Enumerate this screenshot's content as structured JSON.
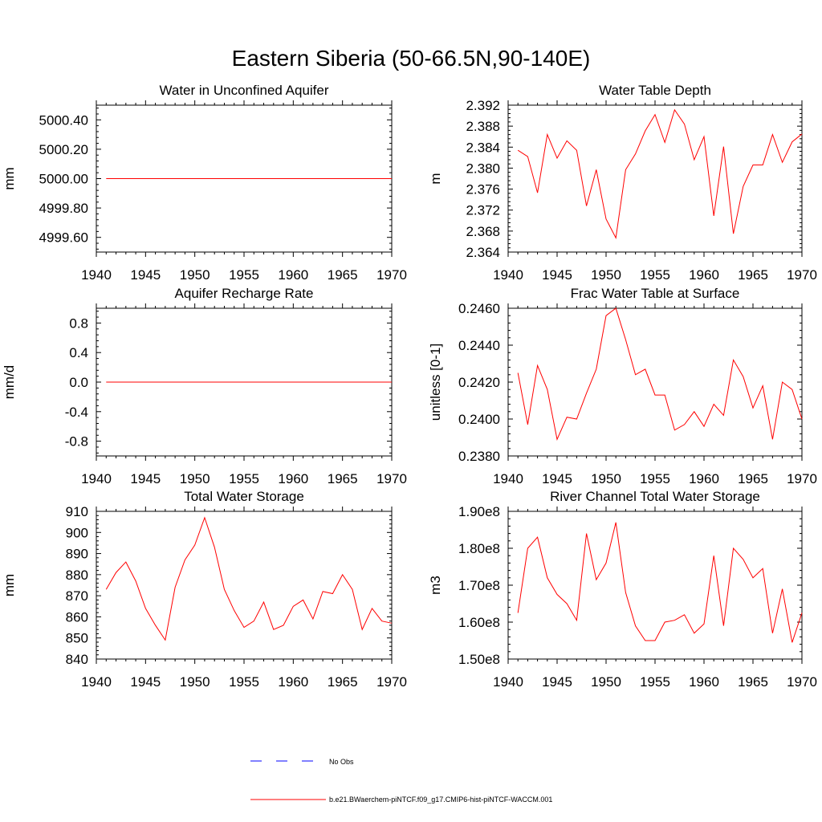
{
  "title": "Eastern Siberia (50-66.5N,90-140E)",
  "colors": {
    "model": "#ff0000",
    "obs": "#0000ff",
    "frame": "#000000"
  },
  "legend": {
    "obs_label": "No Obs",
    "model_label": "b.e21.BWaerchem-piNTCF.f09_g17.CMIP6-hist-piNTCF-WACCM.001"
  },
  "chart_data": [
    {
      "type": "line",
      "title": "Water in Unconfined Aquifer",
      "ylabel": "mm",
      "xlim": [
        1940,
        1970
      ],
      "ylim": [
        4999.5,
        5000.5
      ],
      "xticks": [
        1940,
        1945,
        1950,
        1955,
        1960,
        1965,
        1970
      ],
      "xtick_labels": [
        "1940",
        "1945",
        "1950",
        "1955",
        "1960",
        "1965",
        "1970"
      ],
      "yticks": [
        4999.6,
        4999.8,
        5000.0,
        5000.2,
        5000.4
      ],
      "ytick_labels": [
        "4999.60",
        "4999.80",
        "5000.00",
        "5000.20",
        "5000.40"
      ],
      "x": [
        1941,
        1942,
        1943,
        1944,
        1945,
        1946,
        1947,
        1948,
        1949,
        1950,
        1951,
        1952,
        1953,
        1954,
        1955,
        1956,
        1957,
        1958,
        1959,
        1960,
        1961,
        1962,
        1963,
        1964,
        1965,
        1966,
        1967,
        1968,
        1969,
        1970
      ],
      "series": [
        {
          "values": [
            5000,
            5000,
            5000,
            5000,
            5000,
            5000,
            5000,
            5000,
            5000,
            5000,
            5000,
            5000,
            5000,
            5000,
            5000,
            5000,
            5000,
            5000,
            5000,
            5000,
            5000,
            5000,
            5000,
            5000,
            5000,
            5000,
            5000,
            5000,
            5000,
            5000
          ]
        }
      ]
    },
    {
      "type": "line",
      "title": "Water Table Depth",
      "ylabel": "m",
      "xlim": [
        1940,
        1970
      ],
      "ylim": [
        2.364,
        2.392
      ],
      "xticks": [
        1940,
        1945,
        1950,
        1955,
        1960,
        1965,
        1970
      ],
      "xtick_labels": [
        "1940",
        "1945",
        "1950",
        "1955",
        "1960",
        "1965",
        "1970"
      ],
      "yticks": [
        2.364,
        2.368,
        2.372,
        2.376,
        2.38,
        2.384,
        2.388,
        2.392
      ],
      "ytick_labels": [
        "2.364",
        "2.368",
        "2.372",
        "2.376",
        "2.380",
        "2.384",
        "2.388",
        "2.392"
      ],
      "x": [
        1941,
        1942,
        1943,
        1944,
        1945,
        1946,
        1947,
        1948,
        1949,
        1950,
        1951,
        1952,
        1953,
        1954,
        1955,
        1956,
        1957,
        1958,
        1959,
        1960,
        1961,
        1962,
        1963,
        1964,
        1965,
        1966,
        1967,
        1968,
        1969,
        1970
      ],
      "series": [
        {
          "values": [
            2.3834,
            2.3822,
            2.3753,
            2.3864,
            2.3819,
            2.3852,
            2.3834,
            2.3728,
            2.3797,
            2.3703,
            2.3667,
            2.3797,
            2.3827,
            2.3871,
            2.3902,
            2.3849,
            2.3911,
            2.3884,
            2.3816,
            2.386,
            2.3709,
            2.3841,
            2.3675,
            2.3765,
            2.3806,
            2.3806,
            2.3864,
            2.3811,
            2.385,
            2.3865
          ]
        }
      ]
    },
    {
      "type": "line",
      "title": "Aquifer Recharge Rate",
      "ylabel": "mm/d",
      "xlim": [
        1940,
        1970
      ],
      "ylim": [
        -1.0,
        1.0
      ],
      "xticks": [
        1940,
        1945,
        1950,
        1955,
        1960,
        1965,
        1970
      ],
      "xtick_labels": [
        "1940",
        "1945",
        "1950",
        "1955",
        "1960",
        "1965",
        "1970"
      ],
      "yticks": [
        -0.8,
        -0.4,
        0.0,
        0.4,
        0.8
      ],
      "ytick_labels": [
        "-0.8",
        "-0.4",
        "0.0",
        "0.4",
        "0.8"
      ],
      "x": [
        1941,
        1942,
        1943,
        1944,
        1945,
        1946,
        1947,
        1948,
        1949,
        1950,
        1951,
        1952,
        1953,
        1954,
        1955,
        1956,
        1957,
        1958,
        1959,
        1960,
        1961,
        1962,
        1963,
        1964,
        1965,
        1966,
        1967,
        1968,
        1969,
        1970
      ],
      "series": [
        {
          "values": [
            0,
            0,
            0,
            0,
            0,
            0,
            0,
            0,
            0,
            0,
            0,
            0,
            0,
            0,
            0,
            0,
            0,
            0,
            0,
            0,
            0,
            0,
            0,
            0,
            0,
            0,
            0,
            0,
            0,
            0
          ]
        }
      ]
    },
    {
      "type": "line",
      "title": "Frac Water Table at Surface",
      "ylabel": "unitless [0-1]",
      "xlim": [
        1940,
        1970
      ],
      "ylim": [
        0.238,
        0.246
      ],
      "xticks": [
        1940,
        1945,
        1950,
        1955,
        1960,
        1965,
        1970
      ],
      "xtick_labels": [
        "1940",
        "1945",
        "1950",
        "1955",
        "1960",
        "1965",
        "1970"
      ],
      "yticks": [
        0.238,
        0.24,
        0.242,
        0.244,
        0.246
      ],
      "ytick_labels": [
        "0.2380",
        "0.2400",
        "0.2420",
        "0.2440",
        "0.2460"
      ],
      "x": [
        1941,
        1942,
        1943,
        1944,
        1945,
        1946,
        1947,
        1948,
        1949,
        1950,
        1951,
        1952,
        1953,
        1954,
        1955,
        1956,
        1957,
        1958,
        1959,
        1960,
        1961,
        1962,
        1963,
        1964,
        1965,
        1966,
        1967,
        1968,
        1969,
        1970
      ],
      "series": [
        {
          "values": [
            0.2425,
            0.2397,
            0.2429,
            0.2416,
            0.2389,
            0.2401,
            0.24,
            0.2414,
            0.2427,
            0.2456,
            0.246,
            0.2443,
            0.2424,
            0.2427,
            0.2413,
            0.2413,
            0.2394,
            0.2397,
            0.2404,
            0.2396,
            0.2408,
            0.2402,
            0.2432,
            0.2423,
            0.2406,
            0.2418,
            0.2389,
            0.242,
            0.2416,
            0.24
          ]
        }
      ]
    },
    {
      "type": "line",
      "title": "Total Water Storage",
      "ylabel": "mm",
      "xlim": [
        1940,
        1970
      ],
      "ylim": [
        840,
        910
      ],
      "xticks": [
        1940,
        1945,
        1950,
        1955,
        1960,
        1965,
        1970
      ],
      "xtick_labels": [
        "1940",
        "1945",
        "1950",
        "1955",
        "1960",
        "1965",
        "1970"
      ],
      "yticks": [
        840,
        850,
        860,
        870,
        880,
        890,
        900,
        910
      ],
      "ytick_labels": [
        "840",
        "850",
        "860",
        "870",
        "880",
        "890",
        "900",
        "910"
      ],
      "x": [
        1941,
        1942,
        1943,
        1944,
        1945,
        1946,
        1947,
        1948,
        1949,
        1950,
        1951,
        1952,
        1953,
        1954,
        1955,
        1956,
        1957,
        1958,
        1959,
        1960,
        1961,
        1962,
        1963,
        1964,
        1965,
        1966,
        1967,
        1968,
        1969,
        1970
      ],
      "series": [
        {
          "values": [
            873,
            881,
            886,
            877,
            864,
            856,
            849,
            874,
            887,
            894,
            907,
            893,
            873,
            863,
            855,
            858,
            867,
            854,
            856,
            865,
            868,
            859,
            872,
            871,
            880,
            873,
            854,
            864,
            858,
            857
          ]
        }
      ]
    },
    {
      "type": "line",
      "title": "River Channel Total Water Storage",
      "ylabel": "m3",
      "xlim": [
        1940,
        1970
      ],
      "ylim": [
        150000000,
        190000000
      ],
      "xticks": [
        1940,
        1945,
        1950,
        1955,
        1960,
        1965,
        1970
      ],
      "xtick_labels": [
        "1940",
        "1945",
        "1950",
        "1955",
        "1960",
        "1965",
        "1970"
      ],
      "yticks": [
        150000000,
        160000000,
        170000000,
        180000000,
        190000000
      ],
      "ytick_labels": [
        "1.50e8",
        "1.60e8",
        "1.70e8",
        "1.80e8",
        "1.90e8"
      ],
      "x": [
        1941,
        1942,
        1943,
        1944,
        1945,
        1946,
        1947,
        1948,
        1949,
        1950,
        1951,
        1952,
        1953,
        1954,
        1955,
        1956,
        1957,
        1958,
        1959,
        1960,
        1961,
        1962,
        1963,
        1964,
        1965,
        1966,
        1967,
        1968,
        1969,
        1970
      ],
      "series": [
        {
          "values": [
            162500000,
            180000000,
            183000000,
            172000000,
            167500000,
            165000000,
            160500000,
            184000000,
            171500000,
            176000000,
            187000000,
            168000000,
            159000000,
            155000000,
            155000000,
            160000000,
            160500000,
            162000000,
            157000000,
            159500000,
            178000000,
            159000000,
            180000000,
            177000000,
            172000000,
            174500000,
            157000000,
            169000000,
            154500000,
            162500000
          ]
        }
      ]
    }
  ]
}
